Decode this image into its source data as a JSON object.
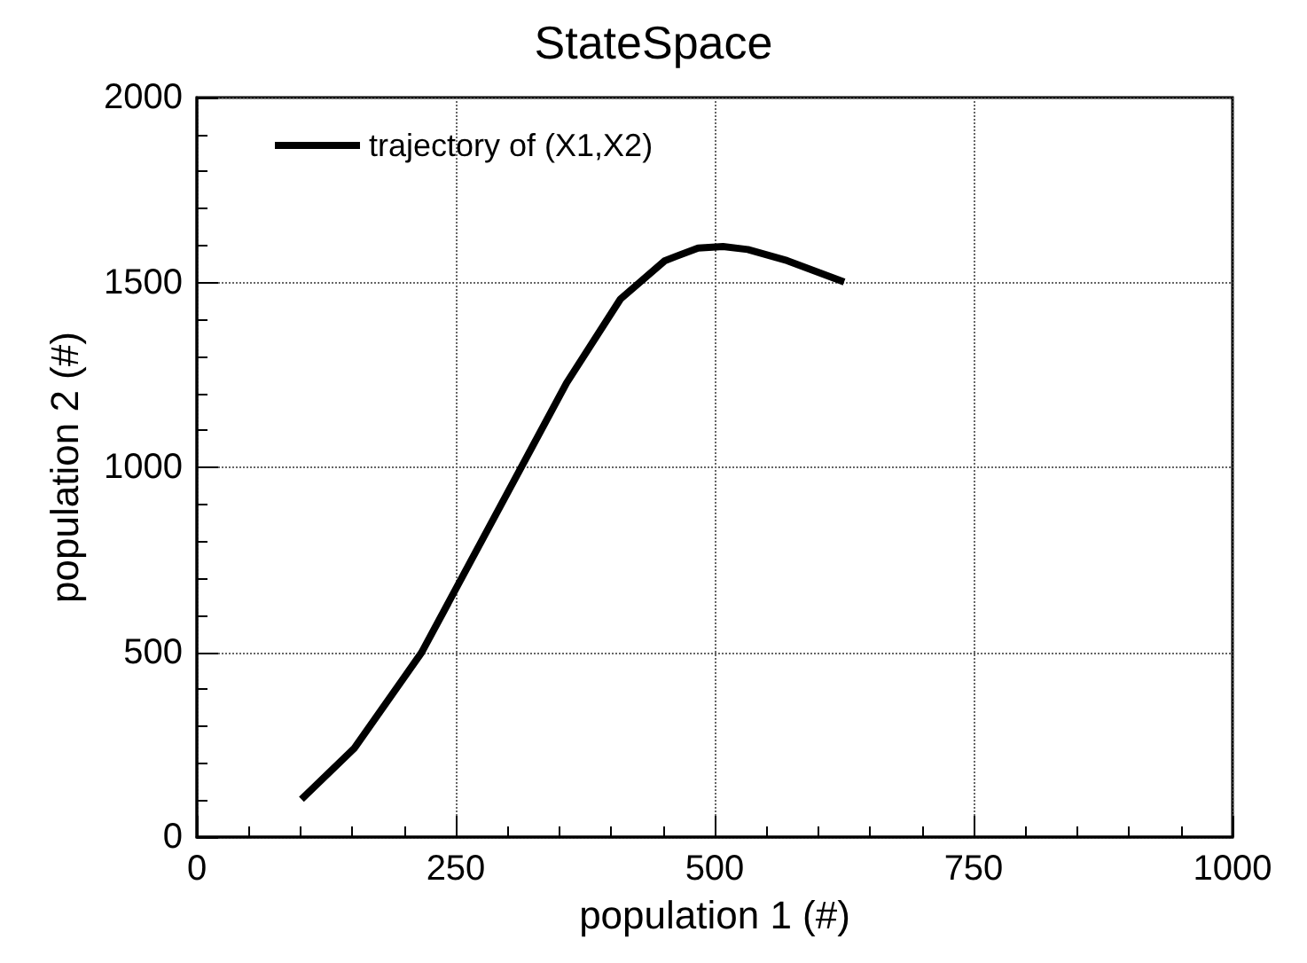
{
  "chart_data": {
    "type": "line",
    "title": "StateSpace",
    "xlabel": "population 1 (#)",
    "ylabel": "population 2 (#)",
    "series": [
      {
        "name": "trajectory of (X1,X2)",
        "color": "#000000",
        "x": [
          101,
          152,
          217,
          357,
          409,
          452,
          484,
          508,
          532,
          570,
          625
        ],
        "values": [
          102,
          240,
          499,
          1228,
          1455,
          1559,
          1593,
          1597,
          1589,
          1559,
          1501
        ]
      }
    ],
    "xlim": [
      0,
      1000
    ],
    "xticks": [
      0,
      250,
      500,
      750,
      1000
    ],
    "ylim": [
      0,
      2000
    ],
    "yticks": [
      0,
      500,
      1000,
      1500,
      2000
    ],
    "grid": true,
    "legend": "top left",
    "marker": "none",
    "line_style": "solid"
  }
}
